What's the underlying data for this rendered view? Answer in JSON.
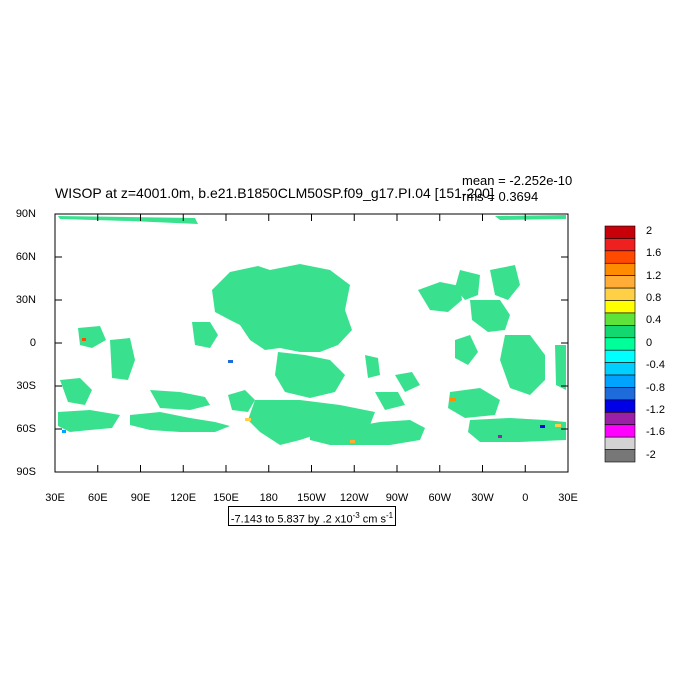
{
  "title": "WISOP at z=4001.0m, b.e21.B1850CLM50SP.f09_g17.PI.04 [151-200]",
  "stats": {
    "mean": "mean = -2.252e-10",
    "rms": "rms = 0.3694"
  },
  "range_label_prefix": "-7.143 to 5.837 by .2 x10",
  "range_label_exp": "-3",
  "range_label_units": " cm s",
  "range_label_exp2": "-1",
  "lat_labels": [
    "90N",
    "60N",
    "30N",
    "0",
    "30S",
    "60S",
    "90S"
  ],
  "lon_labels": [
    "30E",
    "60E",
    "90E",
    "120E",
    "150E",
    "180",
    "150W",
    "120W",
    "90W",
    "60W",
    "30W",
    "0",
    "30E"
  ],
  "colorbar": {
    "labels": [
      "2",
      "1.6",
      "1.2",
      "0.8",
      "0.4",
      "0",
      "-0.4",
      "-0.8",
      "-1.2",
      "-1.6",
      "-2"
    ],
    "colors": [
      "#c8000a",
      "#ee2020",
      "#ff4a00",
      "#ff8c00",
      "#ffad36",
      "#ffd046",
      "#ffff00",
      "#5fe33a",
      "#13d86f",
      "#00ff99",
      "#00ffff",
      "#00cfff",
      "#00a3ff",
      "#1e6bdb",
      "#0000e6",
      "#9c1fa8",
      "#ff00ff",
      "#d3d3d3",
      "#777777"
    ]
  }
}
